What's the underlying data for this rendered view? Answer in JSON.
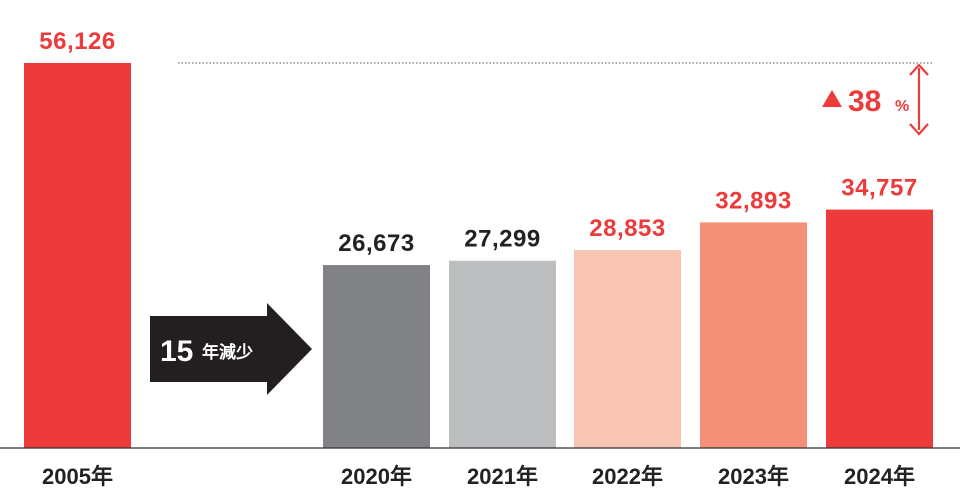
{
  "chart_data": {
    "type": "bar",
    "categories": [
      "2005年",
      "2020年",
      "2021年",
      "2022年",
      "2023年",
      "2024年"
    ],
    "values": [
      56126,
      26673,
      27299,
      28853,
      32893,
      34757
    ],
    "value_labels": [
      "56,126",
      "26,673",
      "27,299",
      "28,853",
      "32,893",
      "34,757"
    ],
    "colors": [
      "#ed3b3b",
      "#818285",
      "#bdbec0",
      "#f8c5b3",
      "#f48f78",
      "#ed3b3b"
    ],
    "label_colors": [
      "#ed3b3b",
      "#222222",
      "#222222",
      "#ed3b3b",
      "#ed3b3b",
      "#ed3b3b"
    ],
    "title": "",
    "xlabel": "",
    "ylabel": "",
    "ylim": [
      0,
      60000
    ],
    "grid": false,
    "annotations": {
      "gap_arrow": {
        "number": "15",
        "text": "年減少"
      },
      "change": {
        "symbol": "▲",
        "value": "38",
        "unit": "%",
        "color": "#ed3b3b"
      }
    }
  }
}
